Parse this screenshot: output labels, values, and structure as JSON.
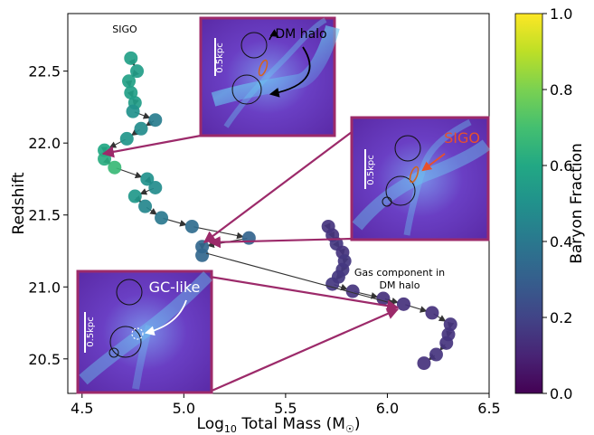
{
  "chart_data": {
    "type": "scatter",
    "xlabel": "Log",
    "xlabel_sub": "10",
    "xlabel_rest": " Total Mass (M",
    "xlabel_sym": "☉",
    "xlabel_close": ")",
    "ylabel": "Redshift",
    "xlim": [
      4.43,
      6.5
    ],
    "ylim": [
      20.26,
      22.9
    ],
    "xticks": [
      "4.5",
      "5.0",
      "5.5",
      "6.0",
      "6.5"
    ],
    "xtick_values": [
      4.5,
      5.0,
      5.5,
      6.0,
      6.5
    ],
    "yticks": [
      "20.5",
      "21.0",
      "21.5",
      "22.0",
      "22.5"
    ],
    "ytick_values": [
      20.5,
      21.0,
      21.5,
      22.0,
      22.5
    ],
    "colorbar": {
      "label": "Baryon Fraction",
      "range": [
        0.0,
        1.0
      ],
      "ticks": [
        "0.0",
        "0.2",
        "0.4",
        "0.6",
        "0.8",
        "1.0"
      ],
      "tick_values": [
        0.0,
        0.2,
        0.4,
        0.6,
        0.8,
        1.0
      ],
      "colormap": "viridis"
    },
    "series": [
      {
        "label": "SIGO",
        "points": [
          {
            "x": 4.74,
            "y": 22.59,
            "c": 0.56
          },
          {
            "x": 4.77,
            "y": 22.5,
            "c": 0.55
          },
          {
            "x": 4.73,
            "y": 22.43,
            "c": 0.57
          },
          {
            "x": 4.74,
            "y": 22.35,
            "c": 0.56
          },
          {
            "x": 4.76,
            "y": 22.28,
            "c": 0.55
          },
          {
            "x": 4.75,
            "y": 22.22,
            "c": 0.5
          },
          {
            "x": 4.86,
            "y": 22.16,
            "c": 0.42
          },
          {
            "x": 4.79,
            "y": 22.1,
            "c": 0.48
          },
          {
            "x": 4.72,
            "y": 22.03,
            "c": 0.52
          },
          {
            "x": 4.61,
            "y": 21.95,
            "c": 0.6
          },
          {
            "x": 4.61,
            "y": 21.89,
            "c": 0.62
          },
          {
            "x": 4.66,
            "y": 21.83,
            "c": 0.67
          },
          {
            "x": 4.82,
            "y": 21.75,
            "c": 0.5
          },
          {
            "x": 4.86,
            "y": 21.69,
            "c": 0.48
          },
          {
            "x": 4.76,
            "y": 21.63,
            "c": 0.53
          },
          {
            "x": 4.81,
            "y": 21.56,
            "c": 0.46
          },
          {
            "x": 4.89,
            "y": 21.48,
            "c": 0.4
          },
          {
            "x": 5.04,
            "y": 21.42,
            "c": 0.35
          },
          {
            "x": 5.32,
            "y": 21.34,
            "c": 0.32
          },
          {
            "x": 5.09,
            "y": 21.28,
            "c": 0.33
          },
          {
            "x": 5.09,
            "y": 21.22,
            "c": 0.33
          }
        ]
      },
      {
        "label": "Gas component in DM halo",
        "points": [
          {
            "x": 5.71,
            "y": 21.42,
            "c": 0.15
          },
          {
            "x": 5.73,
            "y": 21.36,
            "c": 0.15
          },
          {
            "x": 5.75,
            "y": 21.3,
            "c": 0.16
          },
          {
            "x": 5.78,
            "y": 21.24,
            "c": 0.15
          },
          {
            "x": 5.79,
            "y": 21.18,
            "c": 0.16
          },
          {
            "x": 5.78,
            "y": 21.12,
            "c": 0.16
          },
          {
            "x": 5.76,
            "y": 21.07,
            "c": 0.16
          },
          {
            "x": 5.73,
            "y": 21.02,
            "c": 0.16
          },
          {
            "x": 5.83,
            "y": 20.97,
            "c": 0.15
          },
          {
            "x": 5.98,
            "y": 20.92,
            "c": 0.14
          },
          {
            "x": 6.08,
            "y": 20.88,
            "c": 0.14
          },
          {
            "x": 6.22,
            "y": 20.82,
            "c": 0.14
          },
          {
            "x": 6.31,
            "y": 20.74,
            "c": 0.15
          },
          {
            "x": 6.3,
            "y": 20.67,
            "c": 0.15
          },
          {
            "x": 6.29,
            "y": 20.61,
            "c": 0.15
          },
          {
            "x": 6.24,
            "y": 20.53,
            "c": 0.15
          },
          {
            "x": 6.18,
            "y": 20.47,
            "c": 0.14
          }
        ]
      }
    ],
    "annotations": [
      {
        "text": "SIGO",
        "color": "#000000"
      },
      {
        "text": "Gas component in",
        "text2": "DM halo",
        "color": "#000000"
      }
    ],
    "insets": [
      {
        "id": "inset-dm-halo",
        "label": "DM halo",
        "label_color": "#000000",
        "scale_bar": "0.5kpc",
        "circles": 2,
        "highlight": "#d4641a"
      },
      {
        "id": "inset-sigo",
        "label": "SIGO",
        "label_color": "#e8502a",
        "scale_bar": "0.5kpc",
        "circles": 3,
        "highlight": "#d4641a"
      },
      {
        "id": "inset-gc-like",
        "label": "GC-like",
        "label_color": "#ffffff",
        "scale_bar": "0.5kpc",
        "circles": 3,
        "highlight": "#ffffff"
      }
    ],
    "frame_color": "#9c2a6a",
    "grid": false
  }
}
